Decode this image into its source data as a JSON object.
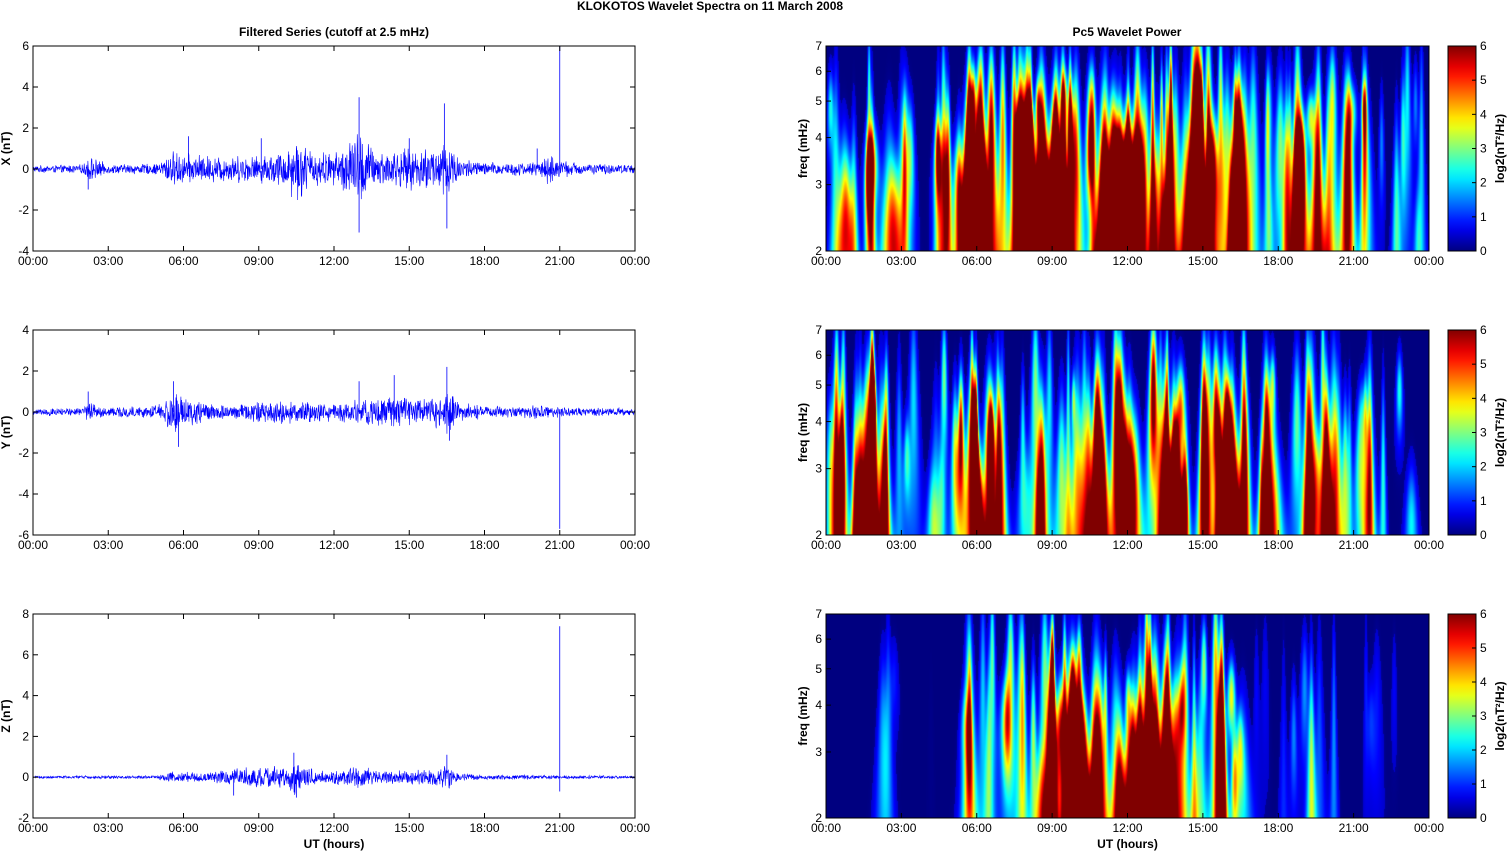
{
  "figure_title": "KLOKOTOS Wavelet Spectra on 11 March     2008",
  "left_title": "Filtered Series (cutoff at 2.5 mHz)",
  "right_title": "Pc5 Wavelet Power",
  "colors": {
    "trace": "#0000ff",
    "axes": "#000000"
  },
  "chart_data": [
    {
      "type": "line",
      "title": "Filtered Series (cutoff at 2.5 mHz)",
      "xlabel": "",
      "ylabel": "X (nT)",
      "xlim": [
        "00:00",
        "00:00"
      ],
      "ylim": [
        -4,
        6
      ],
      "xticks": [
        "00:00",
        "03:00",
        "06:00",
        "09:00",
        "12:00",
        "15:00",
        "18:00",
        "21:00",
        "00:00"
      ],
      "yticks": [
        "-4",
        "-2",
        "0",
        "2",
        "4",
        "6"
      ],
      "series": [
        {
          "color": "#0000ff",
          "envelope_hours": [
            0,
            2,
            2.2,
            3,
            5,
            5.5,
            6,
            7,
            8,
            9,
            10,
            10.5,
            11,
            12,
            12.5,
            13,
            13.5,
            14,
            15,
            16,
            16.5,
            17,
            18,
            19,
            20,
            20.5,
            21,
            22,
            24
          ],
          "envelope_nT": [
            0.15,
            0.2,
            0.6,
            0.2,
            0.25,
            0.8,
            0.7,
            0.6,
            0.6,
            0.6,
            0.8,
            1.5,
            0.9,
            0.7,
            1.2,
            1.8,
            1.0,
            0.8,
            0.9,
            1.0,
            1.5,
            0.5,
            0.3,
            0.3,
            0.3,
            0.7,
            0.4,
            0.25,
            0.2
          ],
          "spikes": [
            {
              "t": 10.7,
              "v": -1.3
            },
            {
              "t": 13.0,
              "v": 3.5
            },
            {
              "t": 13.0,
              "v": -3.1
            },
            {
              "t": 16.4,
              "v": 3.2
            },
            {
              "t": 16.5,
              "v": -2.9
            },
            {
              "t": 15.0,
              "v": 1.5
            },
            {
              "t": 9.1,
              "v": 1.5
            },
            {
              "t": 20.1,
              "v": 1.0
            },
            {
              "t": 2.2,
              "v": -1.0
            },
            {
              "t": 6.2,
              "v": 1.6
            },
            {
              "t": 21.0,
              "v": 6.0
            }
          ]
        }
      ]
    },
    {
      "type": "line",
      "title": "",
      "xlabel": "",
      "ylabel": "Y (nT)",
      "xlim": [
        "00:00",
        "00:00"
      ],
      "ylim": [
        -6,
        4
      ],
      "xticks": [
        "00:00",
        "03:00",
        "06:00",
        "09:00",
        "12:00",
        "15:00",
        "18:00",
        "21:00",
        "00:00"
      ],
      "yticks": [
        "-6",
        "-4",
        "-2",
        "0",
        "2",
        "4"
      ],
      "series": [
        {
          "color": "#0000ff",
          "envelope_hours": [
            0,
            2,
            2.2,
            3,
            5,
            5.5,
            6,
            7,
            8,
            9,
            10,
            11,
            12,
            13,
            14,
            15,
            16,
            16.5,
            17,
            18,
            19,
            20,
            21,
            22,
            24
          ],
          "envelope_nT": [
            0.15,
            0.2,
            0.5,
            0.2,
            0.3,
            0.9,
            0.8,
            0.4,
            0.3,
            0.5,
            0.5,
            0.5,
            0.4,
            0.6,
            0.7,
            0.6,
            0.7,
            1.1,
            0.4,
            0.3,
            0.25,
            0.3,
            0.25,
            0.2,
            0.15
          ],
          "spikes": [
            {
              "t": 5.6,
              "v": 1.5
            },
            {
              "t": 5.8,
              "v": -1.7
            },
            {
              "t": 13.0,
              "v": 1.5
            },
            {
              "t": 14.4,
              "v": 1.8
            },
            {
              "t": 16.5,
              "v": 2.2
            },
            {
              "t": 16.6,
              "v": -1.4
            },
            {
              "t": 2.2,
              "v": 1.0
            },
            {
              "t": 21.0,
              "v": -5.7
            }
          ]
        }
      ]
    },
    {
      "type": "line",
      "title": "",
      "xlabel": "UT (hours)",
      "ylabel": "Z (nT)",
      "xlim": [
        "00:00",
        "00:00"
      ],
      "ylim": [
        -2,
        8
      ],
      "xticks": [
        "00:00",
        "03:00",
        "06:00",
        "09:00",
        "12:00",
        "15:00",
        "18:00",
        "21:00",
        "00:00"
      ],
      "yticks": [
        "-2",
        "0",
        "2",
        "4",
        "6",
        "8"
      ],
      "series": [
        {
          "color": "#0000ff",
          "envelope_hours": [
            0,
            5,
            5.5,
            6,
            7,
            8,
            9,
            10,
            10.5,
            11,
            12,
            13,
            14,
            15,
            16,
            16.5,
            17,
            18,
            20,
            21,
            24
          ],
          "envelope_nT": [
            0.06,
            0.08,
            0.3,
            0.25,
            0.2,
            0.4,
            0.5,
            0.5,
            0.8,
            0.4,
            0.3,
            0.5,
            0.3,
            0.3,
            0.4,
            0.6,
            0.2,
            0.1,
            0.1,
            0.08,
            0.06
          ],
          "spikes": [
            {
              "t": 8.0,
              "v": -0.9
            },
            {
              "t": 10.4,
              "v": 1.2
            },
            {
              "t": 10.5,
              "v": -1.0
            },
            {
              "t": 16.5,
              "v": 1.1
            },
            {
              "t": 21.0,
              "v": 7.4
            },
            {
              "t": 21.0,
              "v": -0.7
            }
          ]
        }
      ]
    },
    {
      "type": "heatmap",
      "title": "Pc5 Wavelet Power",
      "xlabel": "",
      "ylabel": "freq (mHz)",
      "xticks": [
        "00:00",
        "03:00",
        "06:00",
        "09:00",
        "12:00",
        "15:00",
        "18:00",
        "21:00",
        "00:00"
      ],
      "yticks": [
        "2",
        "3",
        "4",
        "5",
        "6",
        "7"
      ],
      "ylim": [
        2,
        7
      ],
      "yscale": "log",
      "colorbar": {
        "label": "log2(nT²/Hz)",
        "ticks": [
          "0",
          "1",
          "2",
          "3",
          "4",
          "5",
          "6"
        ],
        "range": [
          0,
          6
        ],
        "colormap": "jet"
      },
      "activity_hours": [
        0,
        1,
        2,
        2.5,
        3,
        4,
        5,
        5.5,
        6,
        7,
        8,
        9,
        10,
        11,
        12,
        13,
        14,
        15,
        16,
        16.5,
        17,
        18,
        19,
        20,
        21,
        22,
        23,
        24
      ],
      "activity_level": [
        0.35,
        0.6,
        0.95,
        0.6,
        0.5,
        0.55,
        0.75,
        1.0,
        0.95,
        0.8,
        0.95,
        1.0,
        1.0,
        0.9,
        1.0,
        1.0,
        0.85,
        0.85,
        1.0,
        0.9,
        0.6,
        0.55,
        0.7,
        0.6,
        0.5,
        0.4,
        0.45,
        0.4
      ]
    },
    {
      "type": "heatmap",
      "title": "",
      "xlabel": "",
      "ylabel": "freq (mHz)",
      "xticks": [
        "00:00",
        "03:00",
        "06:00",
        "09:00",
        "12:00",
        "15:00",
        "18:00",
        "21:00",
        "00:00"
      ],
      "yticks": [
        "2",
        "3",
        "4",
        "5",
        "6",
        "7"
      ],
      "ylim": [
        2,
        7
      ],
      "yscale": "log",
      "colorbar": {
        "label": "log2(nT²/Hz)",
        "ticks": [
          "0",
          "1",
          "2",
          "3",
          "4",
          "5",
          "6"
        ],
        "range": [
          0,
          6
        ],
        "colormap": "jet"
      },
      "activity_hours": [
        0,
        1,
        2,
        2.5,
        3,
        4,
        5,
        5.5,
        6,
        7,
        8,
        9,
        10,
        11,
        12,
        13,
        14,
        15,
        16,
        16.5,
        17,
        18,
        19,
        20,
        21,
        22,
        23,
        24
      ],
      "activity_level": [
        0.3,
        0.6,
        0.9,
        0.5,
        0.45,
        0.45,
        0.55,
        0.95,
        1.0,
        0.6,
        0.55,
        0.6,
        0.75,
        0.85,
        0.8,
        0.85,
        0.9,
        0.8,
        0.95,
        0.85,
        0.55,
        0.6,
        0.65,
        0.6,
        0.5,
        0.4,
        0.45,
        0.35
      ]
    },
    {
      "type": "heatmap",
      "title": "",
      "xlabel": "UT (hours)",
      "ylabel": "freq (mHz)",
      "xticks": [
        "00:00",
        "03:00",
        "06:00",
        "09:00",
        "12:00",
        "15:00",
        "18:00",
        "21:00",
        "00:00"
      ],
      "yticks": [
        "2",
        "3",
        "4",
        "5",
        "6",
        "7"
      ],
      "ylim": [
        2,
        7
      ],
      "yscale": "log",
      "colorbar": {
        "label": "log2(nT²/Hz)",
        "ticks": [
          "0",
          "1",
          "2",
          "3",
          "4",
          "5",
          "6"
        ],
        "range": [
          0,
          6
        ],
        "colormap": "jet"
      },
      "activity_hours": [
        0,
        1,
        2,
        2.5,
        3,
        4,
        5,
        5.5,
        6,
        7,
        8,
        9,
        10,
        11,
        12,
        13,
        14,
        15,
        16,
        16.5,
        17,
        18,
        19,
        20,
        21,
        22,
        23,
        24
      ],
      "activity_level": [
        0.0,
        0.0,
        0.15,
        0.2,
        0.0,
        0.0,
        0.1,
        0.6,
        0.45,
        0.5,
        0.8,
        0.95,
        0.95,
        0.7,
        0.8,
        0.85,
        0.6,
        0.6,
        0.85,
        0.6,
        0.1,
        0.1,
        0.35,
        0.3,
        0.2,
        0.15,
        0.1,
        0.0
      ]
    }
  ]
}
